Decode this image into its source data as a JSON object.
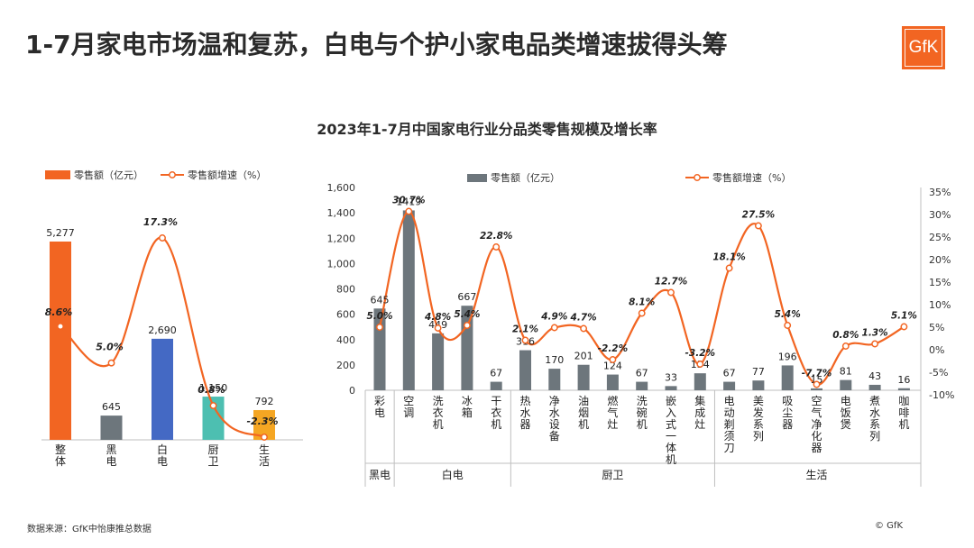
{
  "header": {
    "title": "1-7月家电市场温和复苏，白电与个护小家电品类增速拔得头筹",
    "logo_text": "GfK"
  },
  "subtitle": "2023年1-7月中国家电行业分品类零售规模及增长率",
  "footer": {
    "source": "数据来源：GfK中怡康推总数据",
    "copyright": "© GfK"
  },
  "colors": {
    "orange": "#f26522",
    "gray": "#6d767c",
    "blue": "#4469c4",
    "teal": "#4dbfb1",
    "amber": "#f5a623"
  },
  "chart_data": [
    {
      "type": "bar",
      "legend": {
        "bar": "零售额（亿元）",
        "line": "零售额增速（%）"
      },
      "legend_placement": "top-left",
      "categories": [
        "整体",
        "黑电",
        "白电",
        "厨卫",
        "生活"
      ],
      "bar_colors": [
        "#f26522",
        "#6d767c",
        "#4469c4",
        "#4dbfb1",
        "#f5a623"
      ],
      "bar_labels": [
        "5,277",
        "645",
        "2,690",
        "1,150",
        "792"
      ],
      "series": [
        {
          "values": [
            5277,
            645,
            2690,
            1150,
            792
          ],
          "axis": "left"
        },
        {
          "values": [
            8.6,
            5.0,
            17.3,
            0.8,
            -2.3
          ],
          "axis": "right"
        }
      ],
      "line_labels": [
        "8.6%",
        "5.0%",
        "17.3%",
        "0.8%",
        "-2.3%"
      ],
      "grid": false
    },
    {
      "type": "bar",
      "legend": {
        "bar": "零售额（亿元）",
        "line": "零售额增速（%）"
      },
      "legend_placement": "top",
      "categories": [
        "彩电",
        "空调",
        "洗衣机",
        "冰箱",
        "干衣机",
        "热水器",
        "净水设备",
        "油烟机",
        "燃气灶",
        "洗碗机",
        "嵌入式一体机",
        "集成灶",
        "电动剃须刀",
        "美发系列",
        "吸尘器",
        "空气净化器",
        "电饭煲",
        "煮水系列",
        "咖啡机"
      ],
      "groups": [
        {
          "name": "黑电",
          "count": 1
        },
        {
          "name": "白电",
          "count": 4
        },
        {
          "name": "厨卫",
          "count": 7
        },
        {
          "name": "生活",
          "count": 7
        }
      ],
      "series": [
        {
          "values": [
            645,
            1419,
            449,
            667,
            67,
            316,
            170,
            201,
            124,
            67,
            33,
            134,
            67,
            77,
            196,
            15,
            81,
            43,
            16
          ],
          "axis": "left"
        },
        {
          "values": [
            5.0,
            30.7,
            4.8,
            5.4,
            22.8,
            2.1,
            4.9,
            4.7,
            -2.2,
            8.1,
            12.7,
            -3.2,
            18.1,
            27.5,
            5.4,
            -7.7,
            0.8,
            1.3,
            5.1
          ],
          "axis": "right"
        }
      ],
      "bar_labels": [
        "645",
        "1419",
        "449",
        "667",
        "67",
        "316",
        "170",
        "201",
        "124",
        "67",
        "33",
        "134",
        "67",
        "77",
        "196",
        "15",
        "81",
        "43",
        "16"
      ],
      "line_labels": [
        "5.0%",
        "30.7%",
        "4.8%",
        "5.4%",
        "22.8%",
        "2.1%",
        "4.9%",
        "4.7%",
        "-2.2%",
        "8.1%",
        "12.7%",
        "-3.2%",
        "18.1%",
        "27.5%",
        "5.4%",
        "-7.7%",
        "0.8%",
        "1.3%",
        "5.1%"
      ],
      "y_left": {
        "ticks": [
          "0",
          "200",
          "400",
          "600",
          "800",
          "1,000",
          "1,200",
          "1,400",
          "1,600"
        ],
        "range": [
          0,
          1600
        ]
      },
      "y_right": {
        "ticks": [
          "-10%",
          "-5%",
          "0%",
          "5%",
          "10%",
          "15%",
          "20%",
          "25%",
          "30%",
          "35%"
        ],
        "range": [
          -10,
          35
        ]
      },
      "grid": false
    }
  ]
}
